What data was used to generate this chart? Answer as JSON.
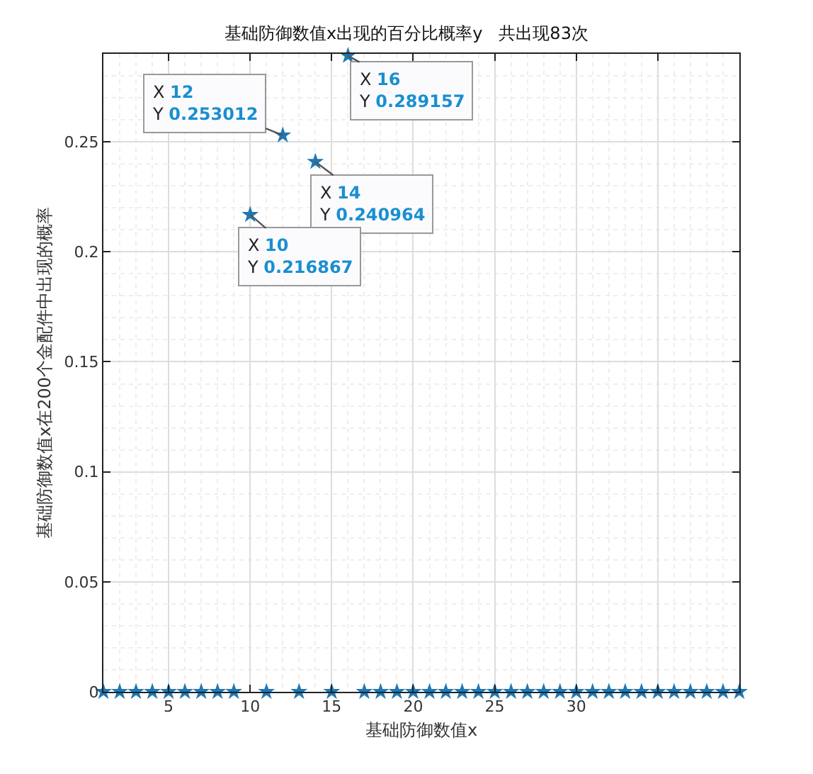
{
  "chart_data": {
    "type": "scatter",
    "title": "基础防御数值x出现的百分比概率y   共出现83次",
    "xlabel": "基础防御数值x",
    "ylabel": "基础防御数值x在200个金配件中出现的概率",
    "x": [
      1,
      2,
      3,
      4,
      5,
      6,
      7,
      8,
      9,
      10,
      11,
      12,
      13,
      14,
      15,
      16,
      17,
      18,
      19,
      20,
      21,
      22,
      23,
      24,
      25,
      26,
      27,
      28,
      29,
      30,
      31,
      32,
      33,
      34,
      35,
      36,
      37,
      38,
      39,
      40
    ],
    "series": [
      {
        "color": "#1f77b4",
        "values": [
          0,
          0,
          0,
          0,
          0,
          0,
          0,
          0,
          0,
          0.216867,
          0,
          0.253012,
          0,
          0.240964,
          0,
          0.289157,
          0,
          0,
          0,
          0,
          0,
          0,
          0,
          0,
          0,
          0,
          0,
          0,
          0,
          0,
          0,
          0,
          0,
          0,
          0,
          0,
          0,
          0,
          0,
          0
        ]
      }
    ],
    "xlim": [
      1,
      40
    ],
    "xticks": [
      5,
      10,
      15,
      20,
      25,
      30,
      {
        "value": 35,
        "label": null
      },
      {
        "value": 40,
        "label": null
      }
    ],
    "ylim": [
      0,
      0.29
    ],
    "yticks": [
      0,
      0.05,
      0.1,
      0.15,
      0.2,
      0.25
    ],
    "annotations": [
      {
        "text": "X 12\nY 0.253012",
        "x": 12,
        "y": 0.253012
      },
      {
        "text": "X 16\nY 0.289157",
        "x": 16,
        "y": 0.289157
      },
      {
        "text": "X 14\nY 0.240964",
        "x": 14,
        "y": 0.240964
      },
      {
        "text": "X 10\nY 0.216867",
        "x": 10,
        "y": 0.216867
      }
    ],
    "grid": true,
    "marker": "star",
    "line_style": "none"
  }
}
